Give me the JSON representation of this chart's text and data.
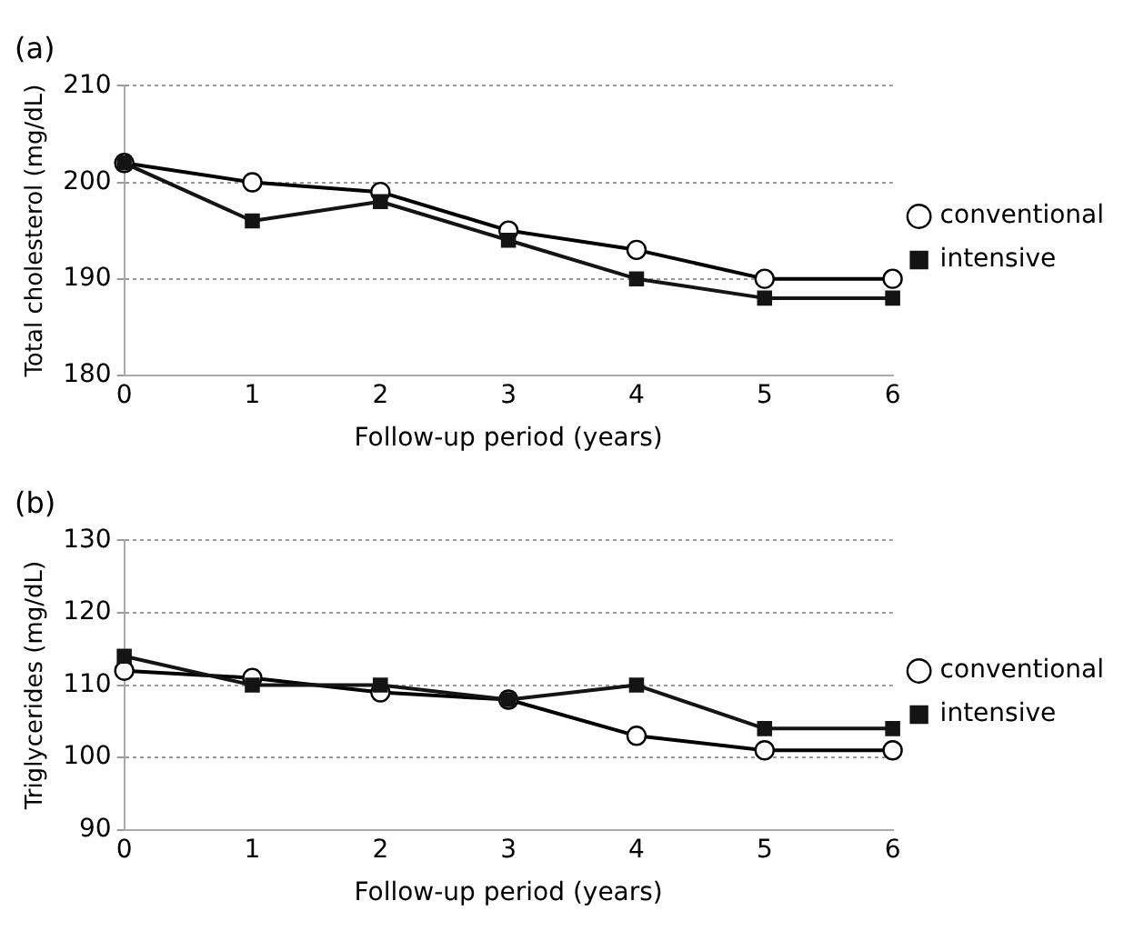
{
  "chart_data": [
    {
      "type": "line",
      "title": "(a)",
      "xlabel": "Follow-up period (years)",
      "ylabel": "Total cholesterol (mg/dL)",
      "categories": [
        "0",
        "1",
        "2",
        "3",
        "4",
        "5",
        "6"
      ],
      "series": [
        {
          "name": "conventional",
          "color": "#000000",
          "marker": "circle",
          "values": [
            202,
            200,
            199,
            195,
            193,
            190,
            190
          ]
        },
        {
          "name": "intensive",
          "color": "#141414",
          "marker": "square",
          "values": [
            202,
            196,
            198,
            194,
            190,
            188,
            188
          ]
        }
      ],
      "ylim": [
        180,
        210
      ],
      "yticks": [
        180,
        190,
        200,
        210
      ],
      "grid": "y",
      "legend": "right"
    },
    {
      "type": "line",
      "title": "(b)",
      "xlabel": "Follow-up period (years)",
      "ylabel": "Triglycerides (mg/dL)",
      "categories": [
        "0",
        "1",
        "2",
        "3",
        "4",
        "5",
        "6"
      ],
      "series": [
        {
          "name": "conventional",
          "color": "#000000",
          "marker": "circle",
          "values": [
            112,
            111,
            109,
            108,
            103,
            101,
            101
          ]
        },
        {
          "name": "intensive",
          "color": "#141414",
          "marker": "square",
          "values": [
            114,
            110,
            110,
            108,
            110,
            104,
            104
          ]
        }
      ],
      "ylim": [
        90,
        130
      ],
      "yticks": [
        90,
        100,
        110,
        120,
        130
      ],
      "grid": "y",
      "legend": "right"
    }
  ]
}
